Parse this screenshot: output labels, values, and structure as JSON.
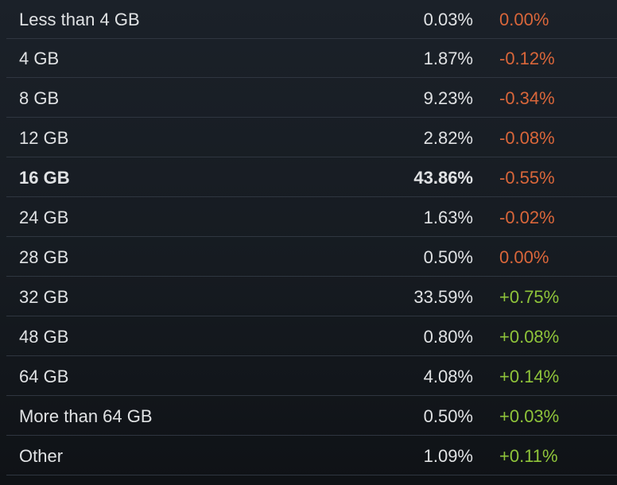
{
  "rows": [
    {
      "label": "Less than 4 GB",
      "percent": "0.03%",
      "change": "0.00%",
      "trend": "neg",
      "bold": false
    },
    {
      "label": "4 GB",
      "percent": "1.87%",
      "change": "-0.12%",
      "trend": "neg",
      "bold": false
    },
    {
      "label": "8 GB",
      "percent": "9.23%",
      "change": "-0.34%",
      "trend": "neg",
      "bold": false
    },
    {
      "label": "12 GB",
      "percent": "2.82%",
      "change": "-0.08%",
      "trend": "neg",
      "bold": false
    },
    {
      "label": "16 GB",
      "percent": "43.86%",
      "change": "-0.55%",
      "trend": "neg",
      "bold": true
    },
    {
      "label": "24 GB",
      "percent": "1.63%",
      "change": "-0.02%",
      "trend": "neg",
      "bold": false
    },
    {
      "label": "28 GB",
      "percent": "0.50%",
      "change": "0.00%",
      "trend": "neg",
      "bold": false
    },
    {
      "label": "32 GB",
      "percent": "33.59%",
      "change": "+0.75%",
      "trend": "pos",
      "bold": false
    },
    {
      "label": "48 GB",
      "percent": "0.80%",
      "change": "+0.08%",
      "trend": "pos",
      "bold": false
    },
    {
      "label": "64 GB",
      "percent": "4.08%",
      "change": "+0.14%",
      "trend": "pos",
      "bold": false
    },
    {
      "label": "More than 64 GB",
      "percent": "0.50%",
      "change": "+0.03%",
      "trend": "pos",
      "bold": false
    },
    {
      "label": "Other",
      "percent": "1.09%",
      "change": "+0.11%",
      "trend": "pos",
      "bold": false
    }
  ],
  "colors": {
    "negative": "#d9663a",
    "positive": "#8fc43a",
    "text": "#e0e2e4",
    "divider": "#2f3640"
  }
}
